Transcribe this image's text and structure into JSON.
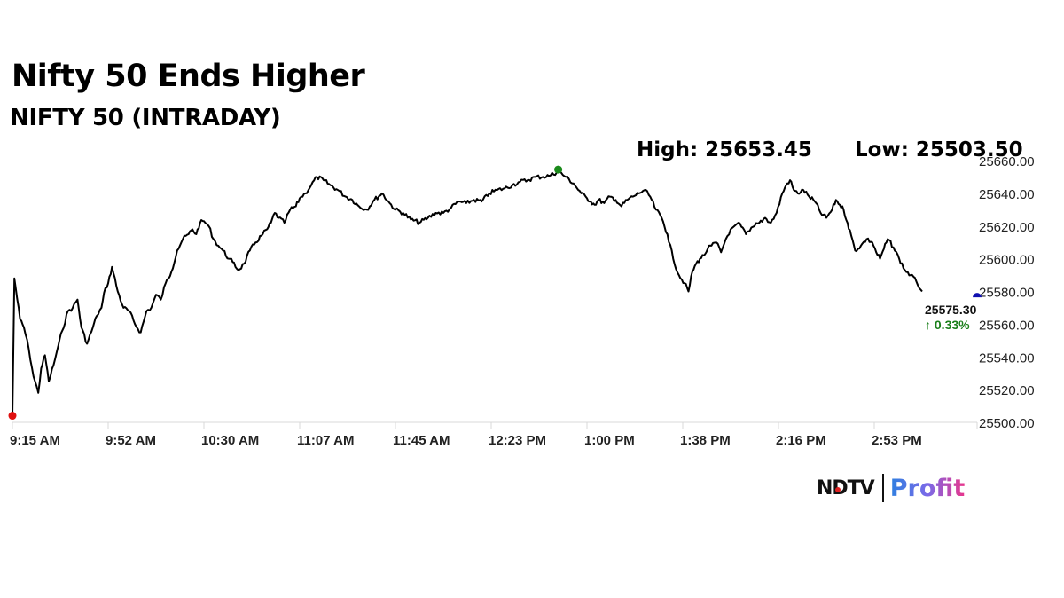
{
  "header": {
    "title": "Nifty 50 Ends Higher",
    "subtitle": "NIFTY 50 (INTRADAY)",
    "high_label": "High: 25653.45",
    "low_label": "Low: 25503.50"
  },
  "last": {
    "value": "25575.30",
    "change": "↑ 0.33%",
    "change_color": "#1a7f1a"
  },
  "logo": {
    "brand": "NDTV",
    "product": "Profit"
  },
  "colors": {
    "line": "#000000",
    "open_marker": "#e01010",
    "high_marker": "#1a8a1a",
    "close_marker": "#1010b0",
    "axis": "#d8d8d8"
  },
  "chart_data": {
    "type": "line",
    "title": "Nifty 50 Ends Higher",
    "subtitle": "NIFTY 50 (INTRADAY)",
    "xlabel": "",
    "ylabel": "",
    "ylim": [
      25500,
      25660
    ],
    "yticks": [
      "25660.00",
      "25640.00",
      "25620.00",
      "25600.00",
      "25580.00",
      "25560.00",
      "25540.00",
      "25520.00",
      "25500.00"
    ],
    "xticks": [
      "9:15 AM",
      "9:52 AM",
      "10:30 AM",
      "11:07 AM",
      "11:45 AM",
      "12:23 PM",
      "1:00 PM",
      "1:38 PM",
      "2:16 PM",
      "2:53 PM"
    ],
    "grid": false,
    "legend": null,
    "annotations": {
      "high": 25653.45,
      "low": 25503.5,
      "last": 25575.3,
      "change_pct": 0.33
    },
    "series": [
      {
        "name": "NIFTY 50",
        "x_index": [
          0,
          0.02,
          0.08,
          0.12,
          0.17,
          0.22,
          0.27,
          0.3,
          0.34,
          0.38,
          0.43,
          0.48,
          0.52,
          0.58,
          0.63,
          0.68,
          0.72,
          0.78,
          0.84,
          0.88,
          0.93,
          0.97,
          1.0,
          1.04,
          1.1,
          1.16,
          1.22,
          1.28,
          1.34,
          1.4,
          1.45,
          1.5,
          1.55,
          1.6,
          1.66,
          1.72,
          1.78,
          1.84,
          1.88,
          1.92,
          1.96,
          2.0,
          2.05,
          2.1,
          2.15,
          2.2,
          2.26,
          2.3,
          2.36,
          2.42,
          2.48,
          2.54,
          2.6,
          2.66,
          2.7,
          2.74,
          2.78,
          2.84,
          2.9,
          2.96,
          3.0,
          3.06,
          3.12,
          3.18,
          3.25,
          3.32,
          3.4,
          3.48,
          3.55,
          3.62,
          3.7,
          3.78,
          3.86,
          3.94,
          4.0,
          4.08,
          4.16,
          4.25,
          4.34,
          4.42,
          4.5,
          4.58,
          4.66,
          4.74,
          4.82,
          4.9,
          4.98,
          5.06,
          5.14,
          5.22,
          5.3,
          5.38,
          5.46,
          5.54,
          5.62,
          5.7,
          5.78,
          5.86,
          5.94,
          6.0,
          6.04,
          6.08,
          6.12,
          6.18,
          6.24,
          6.3,
          6.36,
          6.42,
          6.48,
          6.54,
          6.6,
          6.66,
          6.72,
          6.78,
          6.84,
          6.9,
          6.96,
          7.02,
          7.06,
          7.1,
          7.14,
          7.18,
          7.22,
          7.26,
          7.3,
          7.35,
          7.4,
          7.45,
          7.5,
          7.58,
          7.66,
          7.7,
          7.75,
          7.8,
          7.86,
          7.92,
          7.98,
          8.04,
          8.08,
          8.12,
          8.16,
          8.2,
          8.26,
          8.32,
          8.38,
          8.44,
          8.5,
          8.56,
          8.6,
          8.64,
          8.68,
          8.72,
          8.76,
          8.8,
          8.86,
          8.92,
          8.98,
          9.02,
          9.06,
          9.1,
          9.14,
          9.2,
          9.26,
          9.32,
          9.38,
          9.44,
          9.5
        ],
        "values": [
          25503.5,
          25588,
          25563,
          25558,
          25545,
          25528,
          25518,
          25533,
          25541,
          25525,
          25535,
          25547,
          25556,
          25568,
          25570,
          25575,
          25558,
          25548,
          25558,
          25565,
          25570,
          25582,
          25585,
          25595,
          25580,
          25570,
          25568,
          25560,
          25555,
          25568,
          25570,
          25578,
          25575,
          25585,
          25592,
          25605,
          25612,
          25615,
          25618,
          25615,
          25622,
          25623,
          25620,
          25612,
          25608,
          25605,
          25600,
          25598,
          25593,
          25597,
          25605,
          25610,
          25614,
          25618,
          25622,
          25628,
          25625,
          25622,
          25630,
          25632,
          25637,
          25640,
          25645,
          25650,
          25648,
          25645,
          25642,
          25638,
          25636,
          25632,
          25630,
          25636,
          25640,
          25634,
          25630,
          25628,
          25624,
          25622,
          25625,
          25628,
          25628,
          25631,
          25635,
          25634,
          25636,
          25635,
          25640,
          25642,
          25643,
          25645,
          25647,
          25648,
          25650,
          25650,
          25651,
          25653.45,
          25650,
          25646,
          25640,
          25637,
          25635,
          25633,
          25636,
          25634,
          25638,
          25636,
          25632,
          25636,
          25638,
          25640,
          25642,
          25638,
          25630,
          25625,
          25615,
          25600,
          25590,
          25585,
          25580,
          25592,
          25597,
          25600,
          25602,
          25606,
          25608,
          25610,
          25604,
          25612,
          25618,
          25622,
          25615,
          25617,
          25620,
          25622,
          25625,
          25622,
          25628,
          25640,
          25645,
          25648,
          25642,
          25640,
          25642,
          25638,
          25635,
          25628,
          25625,
          25630,
          25636,
          25633,
          25630,
          25622,
          25614,
          25605,
          25608,
          25612,
          25610,
          25604,
          25600,
          25606,
          25612,
          25607,
          25600,
          25593,
          25590,
          25586,
          25580,
          25578,
          25575.3
        ],
        "color": "#000000"
      }
    ]
  }
}
